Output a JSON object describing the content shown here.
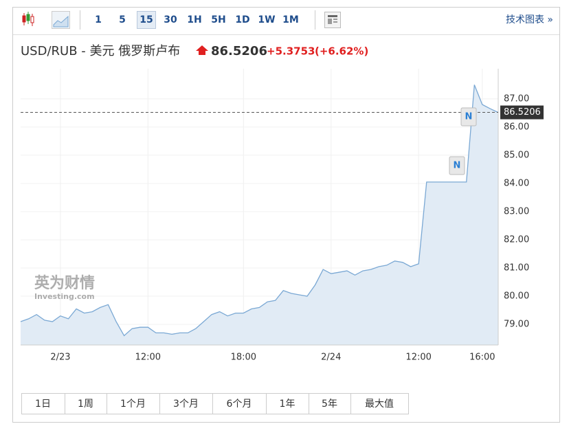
{
  "toolbar": {
    "intervals": [
      "1",
      "5",
      "15",
      "30",
      "1H",
      "5H",
      "1D",
      "1W",
      "1M"
    ],
    "selected_index": 2,
    "link": "技术图表 »"
  },
  "header": {
    "change": "+5.3753",
    "change_pct": "(+6.62%)"
  },
  "chart_data": {
    "type": "area",
    "title": "USD/RUB - 美元 俄罗斯卢布",
    "color": "#7aa8d4",
    "fill": "#e1ebf5",
    "categories": [
      null,
      null,
      null,
      null,
      null,
      "2/23",
      null,
      null,
      null,
      null,
      null,
      null,
      null,
      null,
      null,
      null,
      "12:00",
      null,
      null,
      null,
      null,
      null,
      null,
      null,
      null,
      null,
      null,
      null,
      "18:00",
      null,
      null,
      null,
      null,
      null,
      null,
      null,
      null,
      null,
      null,
      "2/24",
      null,
      null,
      null,
      null,
      null,
      null,
      null,
      null,
      null,
      null,
      "12:00",
      null,
      null,
      null,
      null,
      null,
      null,
      null,
      "16:00",
      null,
      null
    ],
    "values": [
      79.1,
      79.2,
      79.35,
      79.15,
      79.1,
      79.3,
      79.2,
      79.55,
      79.4,
      79.45,
      79.6,
      79.7,
      79.1,
      78.6,
      78.85,
      78.9,
      78.9,
      78.7,
      78.7,
      78.65,
      78.7,
      78.7,
      78.85,
      79.1,
      79.35,
      79.45,
      79.3,
      79.4,
      79.4,
      79.55,
      79.6,
      79.8,
      79.85,
      80.2,
      80.1,
      80.05,
      80.0,
      80.4,
      80.95,
      80.8,
      80.85,
      80.9,
      80.75,
      80.9,
      80.95,
      81.05,
      81.1,
      81.25,
      81.2,
      81.05,
      81.15,
      84.05,
      84.05,
      84.05,
      84.05,
      84.05,
      84.05,
      87.5,
      86.8,
      86.65,
      86.52
    ],
    "last_value": 86.5206,
    "ylim": [
      78.27,
      88.07
    ],
    "yticks": [
      {
        "value": 79,
        "label": "79.00"
      },
      {
        "value": 80,
        "label": "80.00"
      },
      {
        "value": 81,
        "label": "81.00"
      },
      {
        "value": 82,
        "label": "82.00"
      },
      {
        "value": 83,
        "label": "83.00"
      },
      {
        "value": 84,
        "label": "84.00"
      },
      {
        "value": 85,
        "label": "85.00"
      },
      {
        "value": 86,
        "label": "86.00"
      },
      {
        "value": 87,
        "label": "87.00"
      }
    ],
    "grid": true,
    "annotations": [
      "N",
      "N"
    ],
    "watermark": [
      "英为财情",
      "Investing.com"
    ]
  },
  "ranges": [
    "1日",
    "1周",
    "1个月",
    "3个月",
    "6个月",
    "1年",
    "5年",
    "最大值"
  ]
}
